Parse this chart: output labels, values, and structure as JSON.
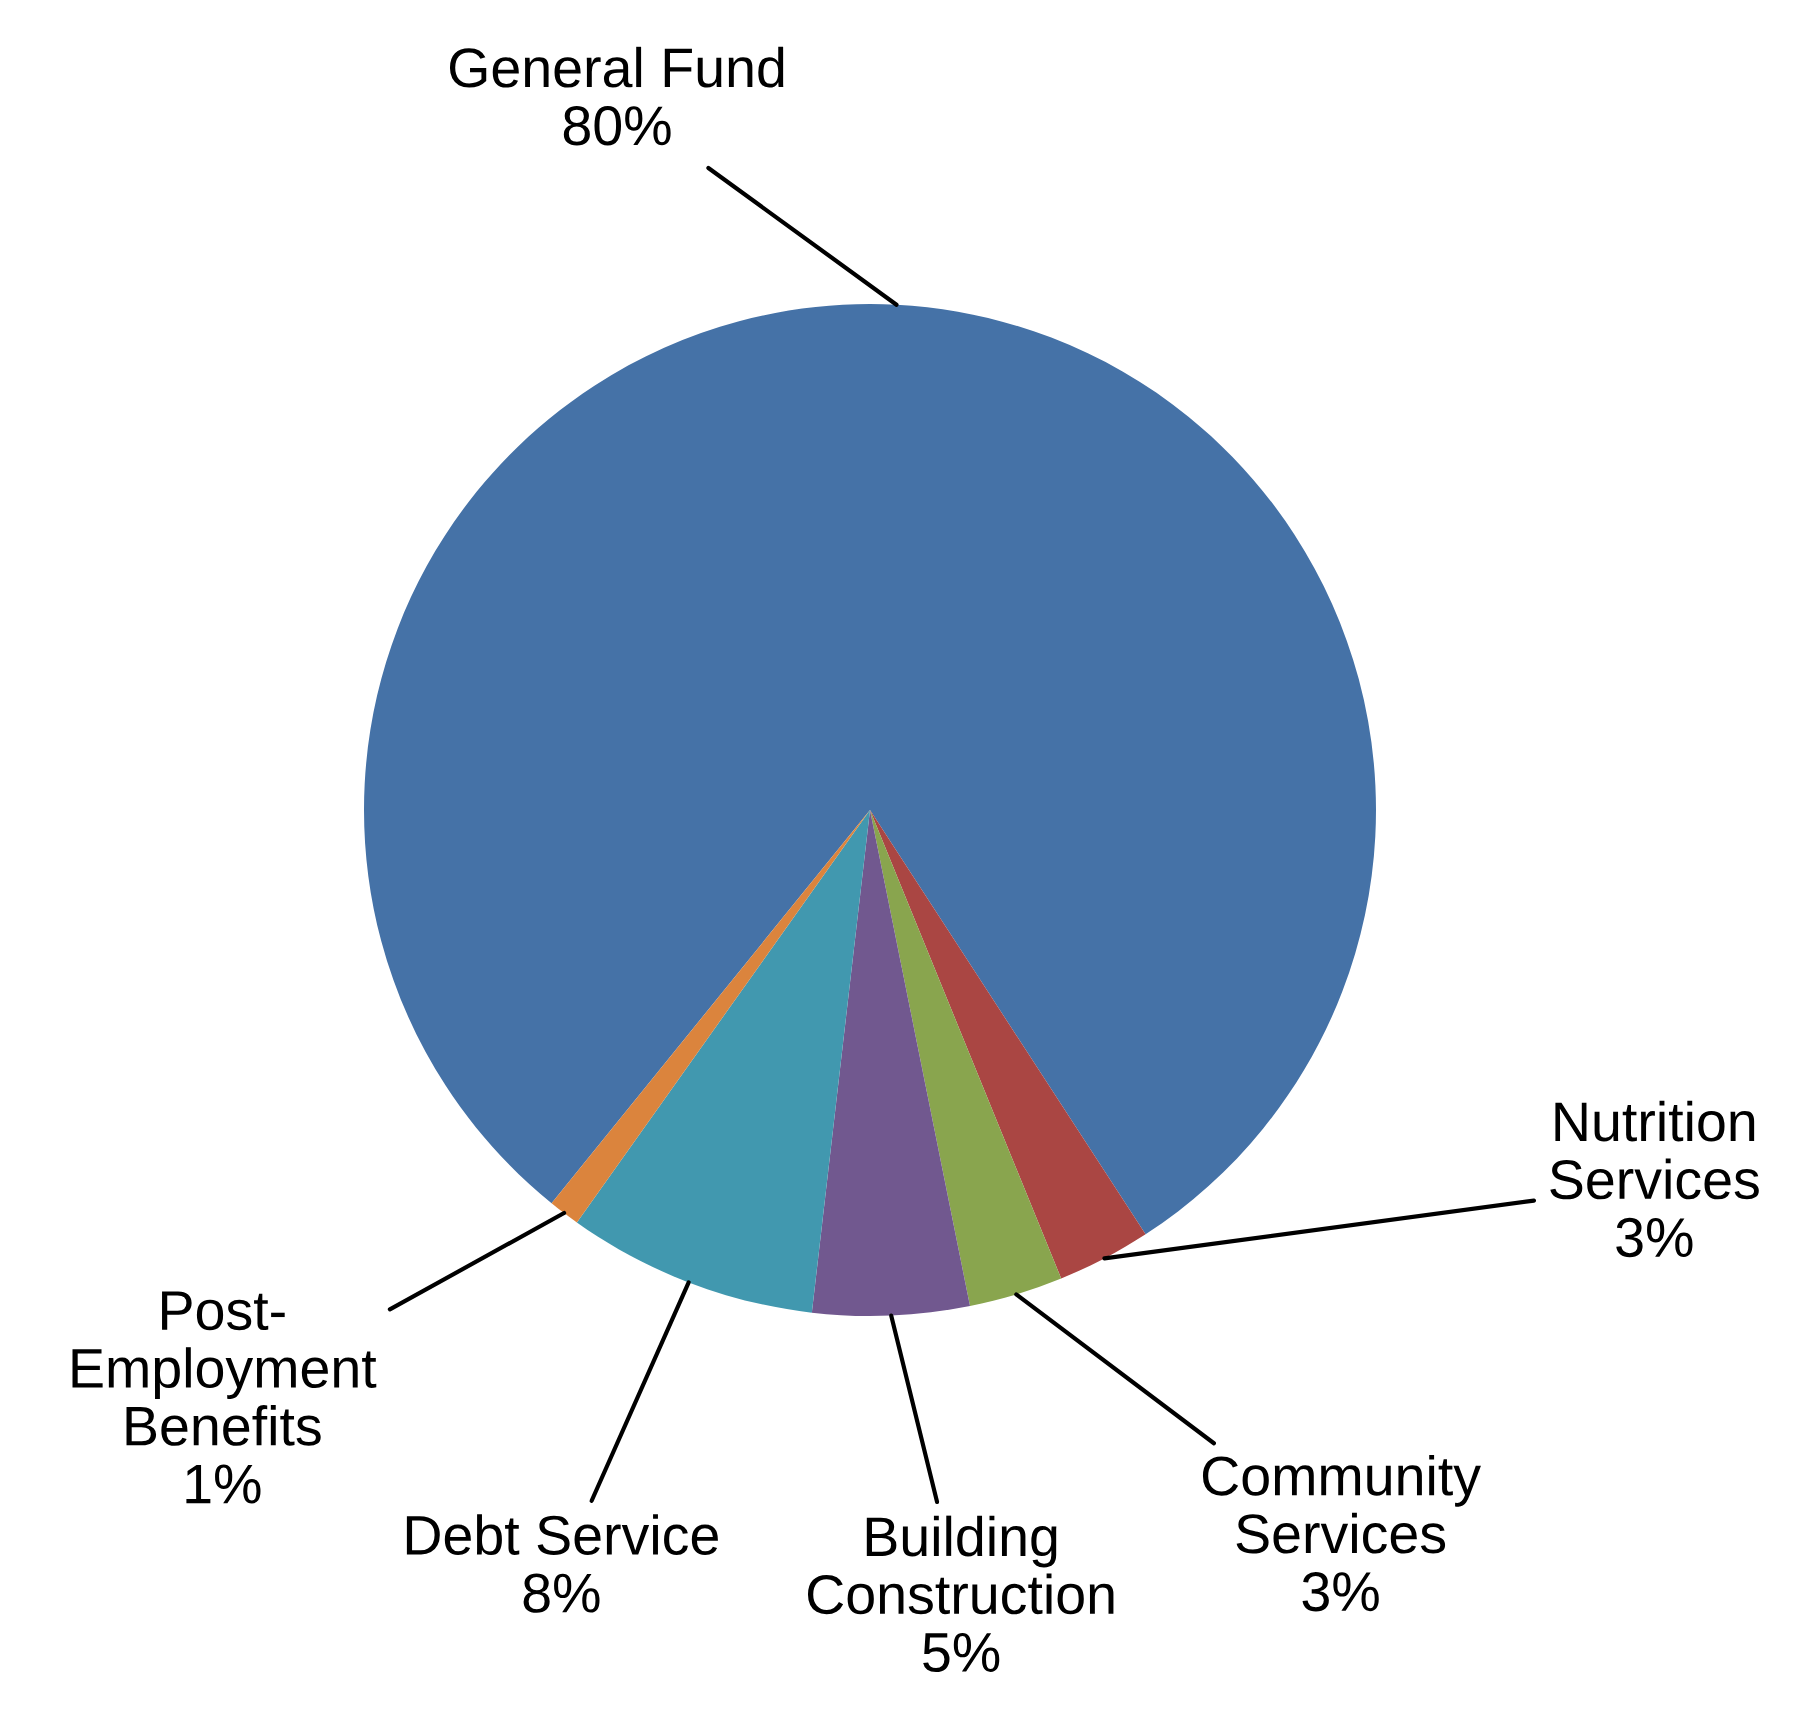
{
  "chart_data": {
    "type": "pie",
    "categories": [
      "General Fund",
      "Nutrition Services",
      "Community Services",
      "Building Construction",
      "Debt Service",
      "Post-Employment Benefits"
    ],
    "values": [
      80,
      3,
      3,
      5,
      8,
      1
    ],
    "value_labels": [
      "80%",
      "3%",
      "3%",
      "5%",
      "8%",
      "1%"
    ],
    "colors": [
      "#4572a7",
      "#aa4643",
      "#89a54e",
      "#71588f",
      "#4198af",
      "#db843d"
    ],
    "legend": false
  }
}
